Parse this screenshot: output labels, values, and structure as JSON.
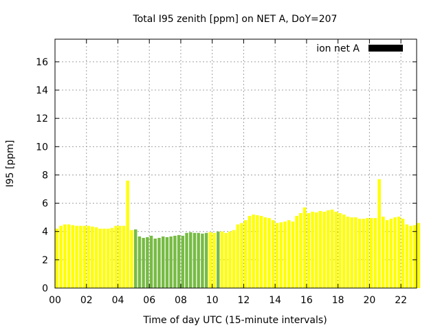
{
  "chart_data": {
    "type": "bar",
    "title": "Total I95 zenith [ppm] on NET A, DoY=207",
    "xlabel": "Time of day UTC (15-minute intervals)",
    "ylabel": "I95 [ppm]",
    "xlim": [
      0,
      23
    ],
    "ylim": [
      0,
      17.6
    ],
    "xticks": [
      0,
      2,
      4,
      6,
      8,
      10,
      12,
      14,
      16,
      18,
      20,
      22
    ],
    "xtick_labels": [
      "00",
      "02",
      "04",
      "06",
      "08",
      "10",
      "12",
      "14",
      "16",
      "18",
      "20",
      "22"
    ],
    "yticks": [
      0,
      2,
      4,
      6,
      8,
      10,
      12,
      14,
      16
    ],
    "ytick_labels": [
      "0",
      "2",
      "4",
      "6",
      "8",
      "10",
      "12",
      "14",
      "16"
    ],
    "grid": true,
    "legend_position": "top-right",
    "series": [
      {
        "name": "ion net A",
        "legend_color": "#000000",
        "interval_hours": 0.25,
        "start_hour": 0.0,
        "color_default": "#ffff00",
        "color_highlight": "#77bb44",
        "highlight_intervals": [
          [
            5.0,
            9.625
          ],
          [
            10.25,
            10.5
          ]
        ],
        "values": [
          4.2,
          4.4,
          4.5,
          4.5,
          4.45,
          4.4,
          4.4,
          4.4,
          4.4,
          4.35,
          4.3,
          4.2,
          4.2,
          4.2,
          4.25,
          4.4,
          4.4,
          4.4,
          7.6,
          4.1,
          4.15,
          3.65,
          3.55,
          3.6,
          3.7,
          3.5,
          3.55,
          3.65,
          3.6,
          3.65,
          3.7,
          3.75,
          3.7,
          3.9,
          3.95,
          3.9,
          3.9,
          3.85,
          3.9,
          3.95,
          3.9,
          4.0,
          4.0,
          3.9,
          4.0,
          4.1,
          4.5,
          4.6,
          4.8,
          5.1,
          5.2,
          5.15,
          5.1,
          5.0,
          4.95,
          4.8,
          4.6,
          4.65,
          4.7,
          4.8,
          4.7,
          5.1,
          5.3,
          5.7,
          5.3,
          5.4,
          5.35,
          5.45,
          5.4,
          5.5,
          5.55,
          5.4,
          5.3,
          5.2,
          5.05,
          5.0,
          5.0,
          4.9,
          4.9,
          4.95,
          4.95,
          4.95,
          7.7,
          5.05,
          4.8,
          4.9,
          5.0,
          5.05,
          4.9,
          4.5,
          4.4,
          4.45,
          4.6
        ]
      }
    ]
  }
}
